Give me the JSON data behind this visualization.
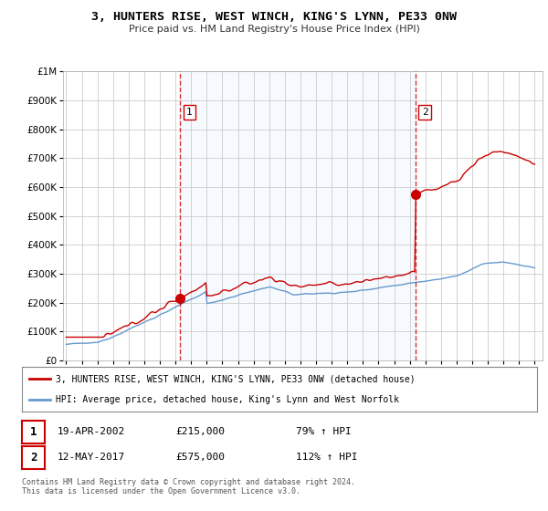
{
  "title": "3, HUNTERS RISE, WEST WINCH, KING'S LYNN, PE33 0NW",
  "subtitle": "Price paid vs. HM Land Registry's House Price Index (HPI)",
  "legend_line1": "3, HUNTERS RISE, WEST WINCH, KING'S LYNN, PE33 0NW (detached house)",
  "legend_line2": "HPI: Average price, detached house, King's Lynn and West Norfolk",
  "sale1_date": "19-APR-2002",
  "sale1_price": "£215,000",
  "sale1_hpi": "79% ↑ HPI",
  "sale2_date": "12-MAY-2017",
  "sale2_price": "£575,000",
  "sale2_hpi": "112% ↑ HPI",
  "footnote": "Contains HM Land Registry data © Crown copyright and database right 2024.\nThis data is licensed under the Open Government Licence v3.0.",
  "sale1_x": 2002.29,
  "sale1_y": 215000,
  "sale2_x": 2017.36,
  "sale2_y": 575000,
  "red_line_color": "#cc0000",
  "blue_line_color": "#6699cc",
  "vline_color": "#cc0000",
  "shade_color": "#ddeeff",
  "ylim": [
    0,
    1000000
  ],
  "xlim": [
    1994.8,
    2025.5
  ],
  "background_color": "#ffffff",
  "plot_bg_color": "#ffffff"
}
